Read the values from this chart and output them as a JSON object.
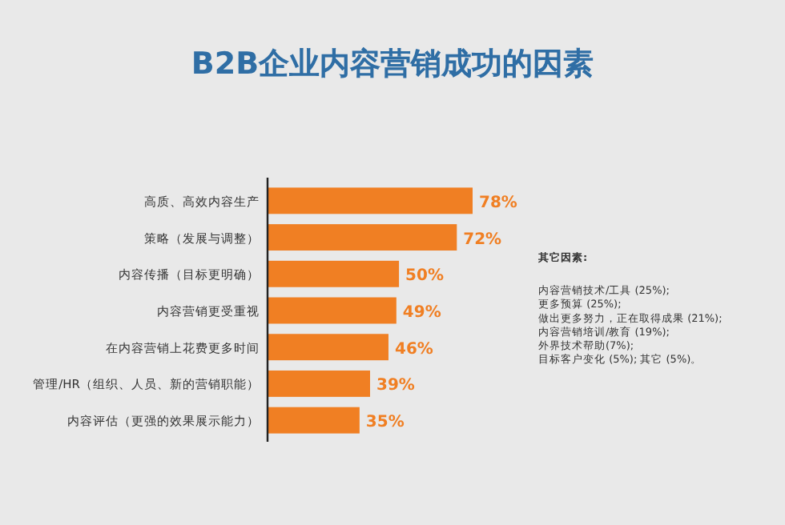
{
  "chart_data": {
    "type": "bar",
    "orientation": "horizontal",
    "title": "B2B企业内容营销成功的因素",
    "categories": [
      "高质、高效内容生产",
      "策略（发展与调整）",
      "内容传播（目标更明确）",
      "内容营销更受重视",
      "在内容营销上花费更多时间",
      "管理/HR（组织、人员、新的营销职能）",
      "内容评估（更强的效果展示能力）"
    ],
    "values": [
      78,
      72,
      50,
      49,
      46,
      39,
      35
    ],
    "value_labels": [
      "78%",
      "72%",
      "50%",
      "49%",
      "46%",
      "39%",
      "35%"
    ],
    "color": "#f07f23",
    "annotations": [
      "其它因素:",
      "内容营销技术/工具 (25%);",
      "更多预算 (25%);",
      "做出更多努力，正在取得成果 (21%);",
      "内容营销培训/教育 (19%);",
      "外界技术帮助(7%);",
      "目标客户变化 (5%); 其它 (5%)。"
    ]
  }
}
